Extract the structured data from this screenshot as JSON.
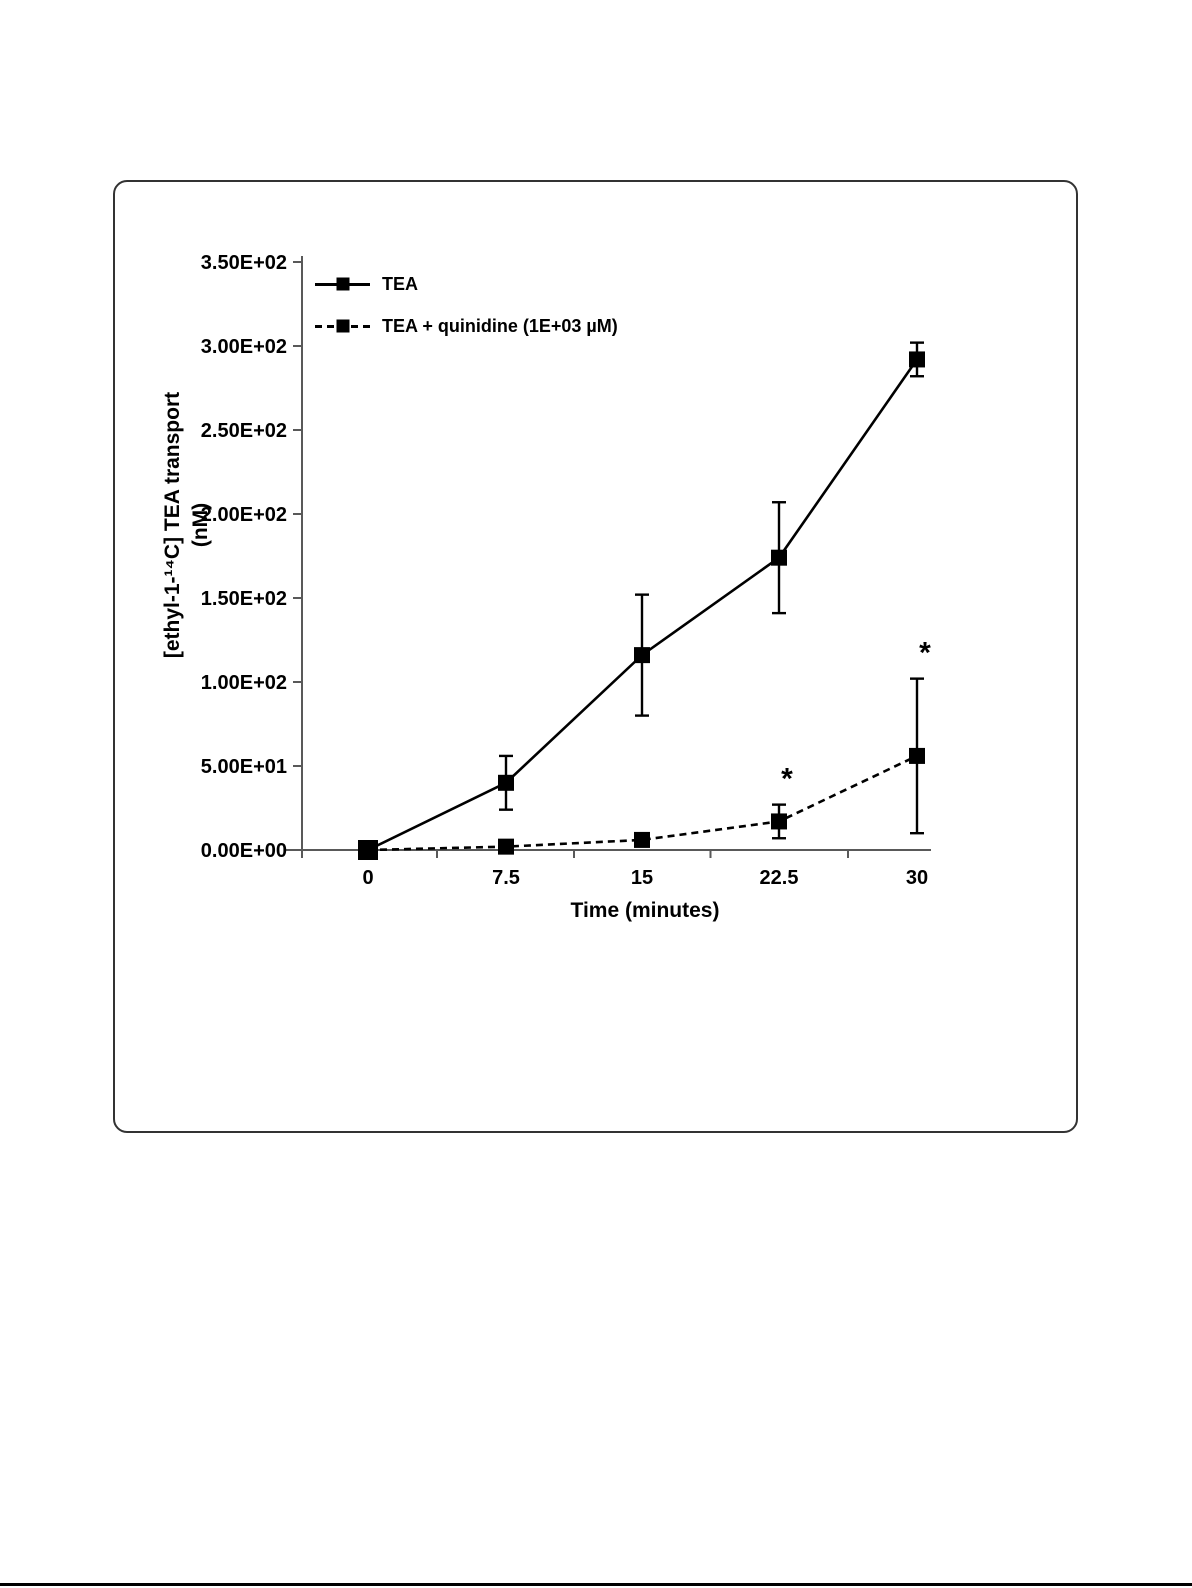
{
  "page": {
    "background": "#ffffff",
    "bottom_edge_color": "#000000"
  },
  "panel": {
    "border_color": "#333333",
    "background": "#ffffff"
  },
  "chart_data": {
    "type": "line",
    "title": "",
    "xlabel": "Time (minutes)",
    "ylabel_line1": "[ethyl-1-¹⁴C] TEA transport",
    "ylabel_line2": "(nM)",
    "x": [
      0,
      7.5,
      15,
      22.5,
      30
    ],
    "x_tick_labels": [
      "0",
      "7.5",
      "15",
      "22.5",
      "30"
    ],
    "y_tick_labels": [
      "0.00E+00",
      "5.00E+01",
      "1.00E+02",
      "1.50E+02",
      "2.00E+02",
      "2.50E+02",
      "3.00E+02",
      "3.50E+02"
    ],
    "y_tick_step": 50,
    "ylim": [
      0,
      350
    ],
    "grid": false,
    "legend_position": "top-left-inside",
    "line_color": "#000000",
    "axis_color": "#595959",
    "series": [
      {
        "name": "TEA",
        "line_style": "solid",
        "marker": "filled-square",
        "color": "#000000",
        "values": [
          0,
          40,
          116,
          174,
          292
        ],
        "errors": [
          0,
          16,
          36,
          33,
          10
        ],
        "significance": [
          "",
          "",
          "",
          "",
          ""
        ]
      },
      {
        "name": "TEA + quinidine (1E+03 µM)",
        "line_style": "dashed",
        "marker": "filled-square",
        "color": "#000000",
        "values": [
          0,
          2,
          6,
          17,
          56
        ],
        "errors": [
          0,
          0,
          0,
          10,
          46
        ],
        "significance": [
          "",
          "",
          "",
          "*",
          "*"
        ]
      }
    ]
  }
}
